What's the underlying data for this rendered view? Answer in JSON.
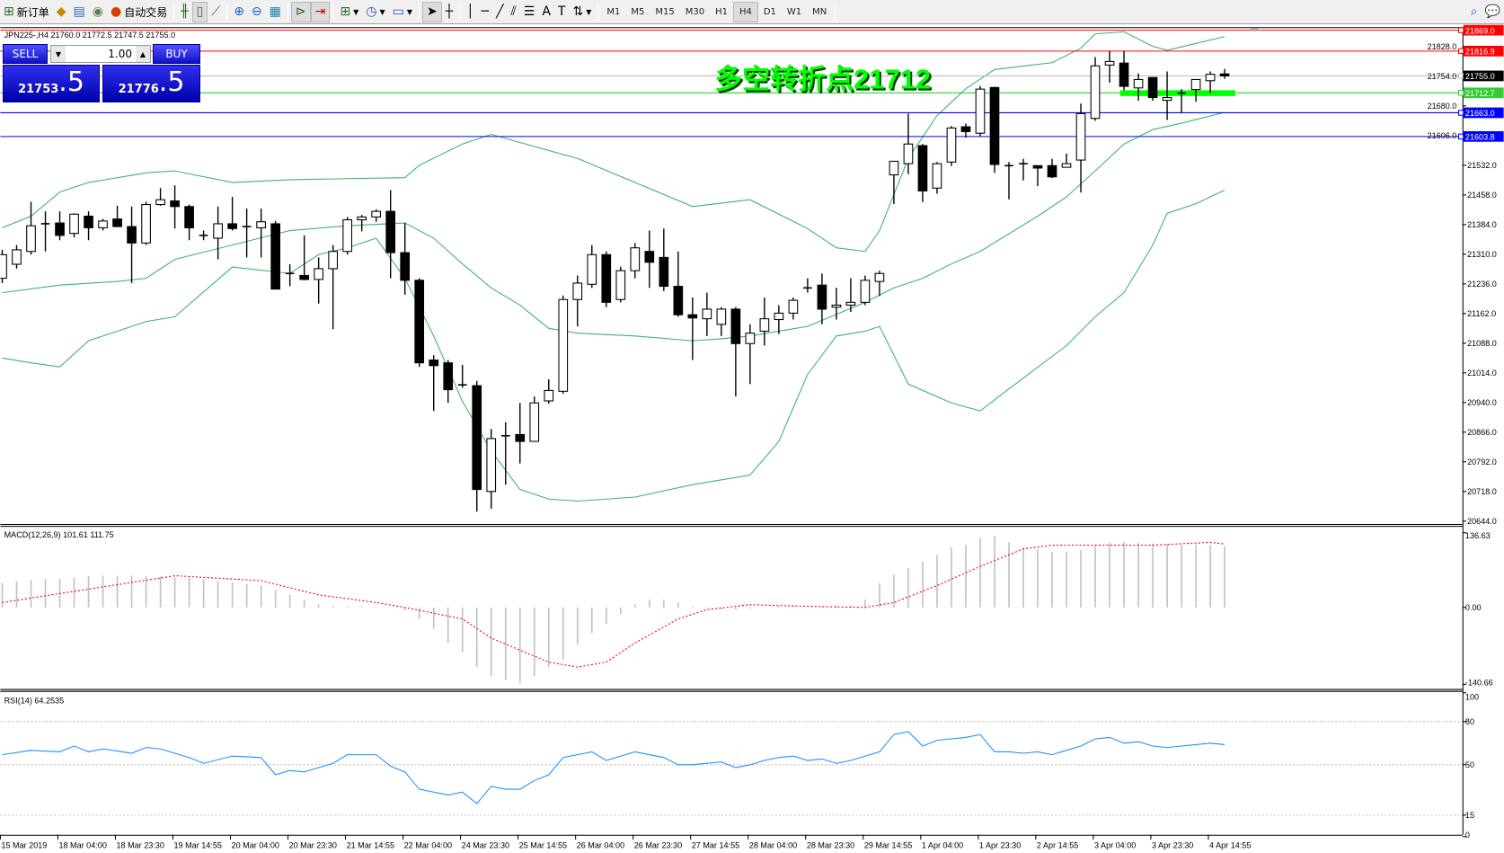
{
  "toolbar": {
    "new_order": "新订单",
    "auto_trading": "自动交易",
    "timeframes": [
      "M1",
      "M5",
      "M15",
      "M30",
      "H1",
      "H4",
      "D1",
      "W1",
      "MN"
    ],
    "active_timeframe": "H4"
  },
  "chart_header": "JPN225-,H4  21760.0 21772.5 21747.5 21755.0",
  "trade_panel": {
    "sell": "SELL",
    "buy": "BUY",
    "lot": "1.00",
    "sell_big": "21753",
    "sell_small": ".5",
    "buy_big": "21776",
    "buy_small": ".5"
  },
  "annotation": {
    "text": "多空转折点21712",
    "color": "#00ff00",
    "level": 21712
  },
  "price_levels": [
    {
      "label": "21869.0",
      "value": 21869.0,
      "color": "#ff0000"
    },
    {
      "label": "21816.9",
      "value": 21816.9,
      "color": "#ff0000"
    },
    {
      "label": "21755.0",
      "value": 21755.0,
      "color": "#c0c0c0"
    },
    {
      "label": "21712.7",
      "value": 21712.7,
      "color": "#33cc33"
    },
    {
      "label": "21663.0",
      "value": 21663.0,
      "color": "#0000ff"
    },
    {
      "label": "21603.8",
      "value": 21603.8,
      "color": "#0000ff"
    }
  ],
  "price_ticks": [
    "21828.0",
    "21754.0",
    "21680.0",
    "21606.0",
    "21532.0",
    "21458.0",
    "21384.0",
    "21310.0",
    "21236.0",
    "21162.0",
    "21088.0",
    "21014.0",
    "20940.0",
    "20866.0",
    "20792.0",
    "20718.0",
    "20644.0"
  ],
  "time_labels": [
    "15 Mar 2019",
    "18 Mar 04:00",
    "18 Mar 23:30",
    "19 Mar 14:55",
    "20 Mar 04:00",
    "20 Mar 23:30",
    "21 Mar 14:55",
    "22 Mar 04:00",
    "24 Mar 23:30",
    "25 Mar 14:55",
    "26 Mar 04:00",
    "26 Mar 23:30",
    "27 Mar 14:55",
    "28 Mar 04:00",
    "28 Mar 23:30",
    "29 Mar 14:55",
    "1 Apr 04:00",
    "1 Apr 23:30",
    "2 Apr 14:55",
    "3 Apr 04:00",
    "3 Apr 23:30",
    "4 Apr 14:55"
  ],
  "macd": {
    "label": "MACD(12,26,9) 101.61 111.75",
    "axis": [
      "136.63",
      "0.00",
      "-140.66"
    ]
  },
  "rsi": {
    "label": "RSI(14) 64.2535",
    "axis": [
      "100",
      "80",
      "50",
      "15",
      "0"
    ]
  },
  "chart_data": {
    "type": "candlestick",
    "symbol": "JPN225-",
    "timeframe": "H4",
    "ylim": [
      20644,
      21869
    ],
    "ohlc": [
      [
        21250,
        21321,
        21238,
        21309
      ],
      [
        21285,
        21333,
        21274,
        21321
      ],
      [
        21317,
        21441,
        21309,
        21381
      ],
      [
        21386,
        21417,
        21317,
        21386
      ],
      [
        21388,
        21417,
        21345,
        21357
      ],
      [
        21362,
        21412,
        21352,
        21410
      ],
      [
        21405,
        21417,
        21345,
        21376
      ],
      [
        21376,
        21398,
        21369,
        21393
      ],
      [
        21398,
        21431,
        21379,
        21379
      ],
      [
        21379,
        21429,
        21238,
        21338
      ],
      [
        21338,
        21441,
        21333,
        21434
      ],
      [
        21434,
        21475,
        21431,
        21446
      ],
      [
        21443,
        21482,
        21374,
        21429
      ],
      [
        21429,
        21434,
        21345,
        21376
      ],
      [
        21357,
        21369,
        21345,
        21357
      ],
      [
        21350,
        21429,
        21297,
        21386
      ],
      [
        21386,
        21453,
        21369,
        21374
      ],
      [
        21379,
        21424,
        21302,
        21379
      ],
      [
        21376,
        21424,
        21302,
        21391
      ],
      [
        21386,
        21393,
        21223,
        21223
      ],
      [
        21262,
        21285,
        21230,
        21262
      ],
      [
        21257,
        21357,
        21245,
        21247
      ],
      [
        21247,
        21302,
        21187,
        21274
      ],
      [
        21274,
        21333,
        21123,
        21317
      ],
      [
        21317,
        21403,
        21309,
        21396
      ],
      [
        21396,
        21408,
        21367,
        21403
      ],
      [
        21403,
        21422,
        21391,
        21417
      ],
      [
        21417,
        21470,
        21250,
        21314
      ],
      [
        21314,
        21388,
        21209,
        21245
      ],
      [
        21245,
        21250,
        21029,
        21039
      ],
      [
        21046,
        21058,
        20919,
        21032
      ],
      [
        21039,
        21046,
        20939,
        20972
      ],
      [
        20984,
        21034,
        20977,
        20984
      ],
      [
        20982,
        20994,
        20668,
        20723
      ],
      [
        20718,
        20874,
        20675,
        20850
      ],
      [
        20857,
        20891,
        20735,
        20857
      ],
      [
        20860,
        20939,
        20788,
        20843
      ],
      [
        20843,
        20955,
        20843,
        20939
      ],
      [
        20944,
        20998,
        20937,
        20970
      ],
      [
        20968,
        21207,
        20962,
        21197
      ],
      [
        21197,
        21257,
        21130,
        21238
      ],
      [
        21235,
        21333,
        21226,
        21309
      ],
      [
        21309,
        21317,
        21178,
        21190
      ],
      [
        21197,
        21279,
        21190,
        21269
      ],
      [
        21269,
        21338,
        21250,
        21326
      ],
      [
        21317,
        21369,
        21226,
        21290
      ],
      [
        21302,
        21374,
        21218,
        21230
      ],
      [
        21230,
        21317,
        21154,
        21159
      ],
      [
        21159,
        21202,
        21046,
        21151
      ],
      [
        21149,
        21214,
        21106,
        21173
      ],
      [
        21135,
        21178,
        21106,
        21173
      ],
      [
        21173,
        21178,
        20955,
        21087
      ],
      [
        21087,
        21135,
        20986,
        21113
      ],
      [
        21118,
        21202,
        21082,
        21149
      ],
      [
        21147,
        21183,
        21111,
        21163
      ],
      [
        21163,
        21202,
        21147,
        21195
      ],
      [
        21226,
        21250,
        21214,
        21226
      ],
      [
        21233,
        21262,
        21135,
        21173
      ],
      [
        21178,
        21226,
        21147,
        21183
      ],
      [
        21183,
        21250,
        21166,
        21190
      ],
      [
        21190,
        21257,
        21183,
        21245
      ],
      [
        21242,
        21269,
        21206,
        21262
      ],
      [
        21508,
        21542,
        21435,
        21542
      ],
      [
        21536,
        21661,
        21510,
        21585
      ],
      [
        21581,
        21585,
        21440,
        21468
      ],
      [
        21475,
        21540,
        21461,
        21536
      ],
      [
        21540,
        21630,
        21530,
        21625
      ],
      [
        21628,
        21636,
        21601,
        21616
      ],
      [
        21612,
        21730,
        21605,
        21722
      ],
      [
        21726,
        21728,
        21513,
        21534
      ],
      [
        21531,
        21540,
        21447,
        21531
      ],
      [
        21536,
        21548,
        21494,
        21536
      ],
      [
        21531,
        21531,
        21480,
        21525
      ],
      [
        21531,
        21548,
        21500,
        21503
      ],
      [
        21527,
        21561,
        21527,
        21536
      ],
      [
        21545,
        21686,
        21464,
        21661
      ],
      [
        21649,
        21802,
        21643,
        21780
      ],
      [
        21782,
        21817,
        21738,
        21791
      ],
      [
        21787,
        21817,
        21719,
        21729
      ],
      [
        21725,
        21761,
        21693,
        21746
      ],
      [
        21751,
        21751,
        21693,
        21701
      ],
      [
        21694,
        21766,
        21645,
        21701
      ],
      [
        21712,
        21722,
        21663,
        21712
      ],
      [
        21721,
        21746,
        21690,
        21746
      ],
      [
        21743,
        21766,
        21712,
        21759
      ],
      [
        21760,
        21772.5,
        21747.5,
        21755
      ]
    ],
    "bollinger_upper": [
      [
        0,
        21376
      ],
      [
        2,
        21405
      ],
      [
        4,
        21465
      ],
      [
        6,
        21489
      ],
      [
        10,
        21513
      ],
      [
        12,
        21518
      ],
      [
        16,
        21489
      ],
      [
        20,
        21496
      ],
      [
        28,
        21501
      ],
      [
        29,
        21532
      ],
      [
        32,
        21585
      ],
      [
        34,
        21609
      ],
      [
        36,
        21589
      ],
      [
        40,
        21549
      ],
      [
        44,
        21489
      ],
      [
        48,
        21429
      ],
      [
        52,
        21446
      ],
      [
        56,
        21374
      ],
      [
        58,
        21326
      ],
      [
        60,
        21317
      ],
      [
        61,
        21369
      ],
      [
        63,
        21549
      ],
      [
        65,
        21656
      ],
      [
        67,
        21723
      ],
      [
        69,
        21771
      ],
      [
        73,
        21788
      ],
      [
        75,
        21824
      ],
      [
        76,
        21860
      ],
      [
        78,
        21865
      ],
      [
        80,
        21829
      ],
      [
        81,
        21819
      ],
      [
        83,
        21836
      ],
      [
        85,
        21853
      ]
    ],
    "bollinger_middle": [
      [
        0,
        21214
      ],
      [
        4,
        21233
      ],
      [
        8,
        21242
      ],
      [
        10,
        21250
      ],
      [
        12,
        21297
      ],
      [
        16,
        21333
      ],
      [
        20,
        21369
      ],
      [
        24,
        21381
      ],
      [
        28,
        21388
      ],
      [
        30,
        21350
      ],
      [
        32,
        21286
      ],
      [
        34,
        21226
      ],
      [
        36,
        21183
      ],
      [
        38,
        21125
      ],
      [
        40,
        21113
      ],
      [
        44,
        21106
      ],
      [
        48,
        21094
      ],
      [
        50,
        21099
      ],
      [
        52,
        21106
      ],
      [
        56,
        21130
      ],
      [
        60,
        21190
      ],
      [
        62,
        21226
      ],
      [
        64,
        21250
      ],
      [
        66,
        21286
      ],
      [
        68,
        21317
      ],
      [
        72,
        21405
      ],
      [
        74,
        21453
      ],
      [
        76,
        21518
      ],
      [
        78,
        21585
      ],
      [
        80,
        21621
      ],
      [
        82,
        21637
      ],
      [
        85,
        21664
      ]
    ],
    "bollinger_lower": [
      [
        0,
        21051
      ],
      [
        2,
        21039
      ],
      [
        4,
        21029
      ],
      [
        6,
        21094
      ],
      [
        10,
        21142
      ],
      [
        12,
        21154
      ],
      [
        16,
        21278
      ],
      [
        20,
        21262
      ],
      [
        22,
        21309
      ],
      [
        24,
        21326
      ],
      [
        26,
        21350
      ],
      [
        28,
        21250
      ],
      [
        30,
        21106
      ],
      [
        32,
        20943
      ],
      [
        34,
        20819
      ],
      [
        36,
        20723
      ],
      [
        38,
        20699
      ],
      [
        40,
        20694
      ],
      [
        44,
        20704
      ],
      [
        48,
        20735
      ],
      [
        52,
        20759
      ],
      [
        54,
        20843
      ],
      [
        56,
        21010
      ],
      [
        58,
        21106
      ],
      [
        60,
        21118
      ],
      [
        61,
        21130
      ],
      [
        63,
        20986
      ],
      [
        66,
        20939
      ],
      [
        68,
        20919
      ],
      [
        70,
        20974
      ],
      [
        74,
        21082
      ],
      [
        76,
        21154
      ],
      [
        78,
        21214
      ],
      [
        80,
        21333
      ],
      [
        81,
        21412
      ],
      [
        83,
        21436
      ],
      [
        85,
        21470
      ]
    ],
    "macd_hist": [
      45,
      48,
      50,
      52,
      53,
      55,
      57,
      58,
      58,
      58,
      57,
      57,
      56,
      55,
      52,
      49,
      46,
      43,
      40,
      32,
      23,
      14,
      5,
      3,
      2,
      2,
      1,
      0,
      -5,
      -21,
      -39,
      -65,
      -82,
      -109,
      -126,
      -132,
      -139,
      -126,
      -109,
      -96,
      -68,
      -47,
      -30,
      -12,
      5,
      14,
      14,
      9,
      2,
      -2,
      -3,
      -4,
      -2,
      0,
      2,
      1,
      0,
      2,
      3,
      4,
      14,
      44,
      60,
      72,
      84,
      96,
      110,
      114,
      128,
      131,
      119,
      110,
      107,
      102,
      102,
      105,
      114,
      119,
      120,
      118,
      117,
      116,
      115,
      115,
      114,
      112
    ],
    "macd_signal": [
      [
        0,
        9
      ],
      [
        12,
        58
      ],
      [
        18,
        49
      ],
      [
        22,
        23
      ],
      [
        26,
        9
      ],
      [
        28,
        0
      ],
      [
        32,
        -21
      ],
      [
        34,
        -56
      ],
      [
        38,
        -100
      ],
      [
        40,
        -109
      ],
      [
        42,
        -100
      ],
      [
        44,
        -65
      ],
      [
        47,
        -21
      ],
      [
        49,
        -4
      ],
      [
        52,
        5
      ],
      [
        56,
        2
      ],
      [
        60,
        0
      ],
      [
        62,
        9
      ],
      [
        65,
        40
      ],
      [
        68,
        75
      ],
      [
        71,
        107
      ],
      [
        73,
        114
      ],
      [
        80,
        114
      ],
      [
        84,
        119
      ],
      [
        85,
        116
      ]
    ],
    "macd_ylim": [
      -140.66,
      136.63
    ],
    "rsi": [
      [
        0,
        57
      ],
      [
        2,
        60
      ],
      [
        4,
        59
      ],
      [
        5,
        63
      ],
      [
        6,
        59
      ],
      [
        7,
        61
      ],
      [
        9,
        58
      ],
      [
        10,
        62
      ],
      [
        11,
        61
      ],
      [
        13,
        55
      ],
      [
        14,
        51
      ],
      [
        16,
        56
      ],
      [
        18,
        55
      ],
      [
        19,
        43
      ],
      [
        20,
        46
      ],
      [
        21,
        45
      ],
      [
        22,
        48
      ],
      [
        23,
        51
      ],
      [
        24,
        57
      ],
      [
        26,
        57
      ],
      [
        27,
        49
      ],
      [
        28,
        45
      ],
      [
        29,
        33
      ],
      [
        30,
        31
      ],
      [
        31,
        29
      ],
      [
        32,
        31
      ],
      [
        33,
        23
      ],
      [
        34,
        35
      ],
      [
        35,
        33
      ],
      [
        36,
        33
      ],
      [
        37,
        39
      ],
      [
        38,
        43
      ],
      [
        39,
        55
      ],
      [
        40,
        57
      ],
      [
        41,
        59
      ],
      [
        42,
        53
      ],
      [
        43,
        56
      ],
      [
        44,
        59
      ],
      [
        46,
        55
      ],
      [
        47,
        50
      ],
      [
        48,
        50
      ],
      [
        50,
        52
      ],
      [
        51,
        48
      ],
      [
        52,
        50
      ],
      [
        53,
        53
      ],
      [
        54,
        55
      ],
      [
        55,
        56
      ],
      [
        56,
        53
      ],
      [
        57,
        54
      ],
      [
        58,
        51
      ],
      [
        59,
        53
      ],
      [
        60,
        56
      ],
      [
        61,
        59
      ],
      [
        62,
        71
      ],
      [
        63,
        73
      ],
      [
        64,
        63
      ],
      [
        65,
        67
      ],
      [
        66,
        68
      ],
      [
        67,
        69
      ],
      [
        68,
        71
      ],
      [
        69,
        59
      ],
      [
        70,
        59
      ],
      [
        71,
        58
      ],
      [
        72,
        59
      ],
      [
        73,
        57
      ],
      [
        74,
        60
      ],
      [
        75,
        63
      ],
      [
        76,
        68
      ],
      [
        77,
        69
      ],
      [
        78,
        65
      ],
      [
        79,
        66
      ],
      [
        80,
        63
      ],
      [
        81,
        62
      ],
      [
        82,
        63
      ],
      [
        83,
        64
      ],
      [
        84,
        65
      ],
      [
        85,
        64
      ]
    ],
    "rsi_levels": [
      80,
      50,
      15
    ]
  }
}
